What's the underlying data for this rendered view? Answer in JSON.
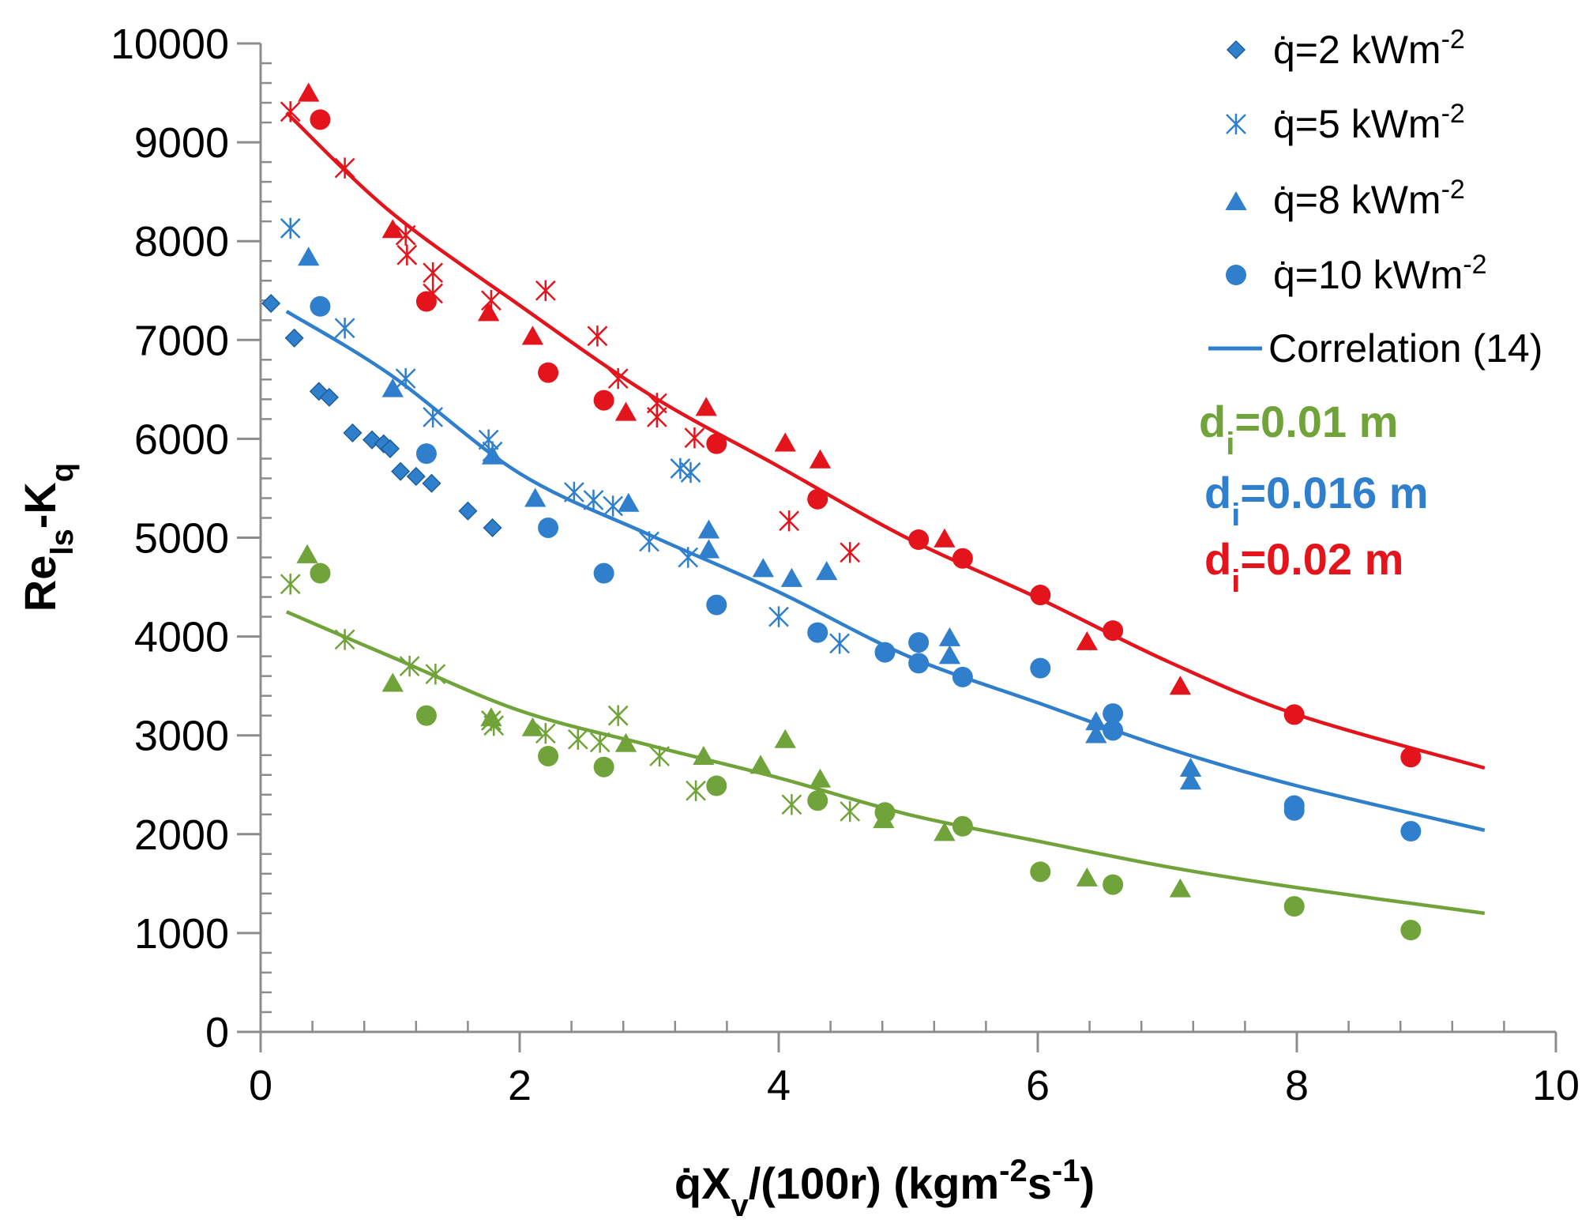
{
  "colors": {
    "green": "#70a33a",
    "blue": "#2f7fcc",
    "red": "#e3141b",
    "axis": "#8c8c8c"
  },
  "chart_data": {
    "type": "scatter",
    "title": "",
    "xlabel": {
      "main": "q̇X",
      "sub": "v",
      "rest": "/(100r) (kgm",
      "sup1": "-2",
      "mid": "s",
      "sup2": "-1",
      "end": ")"
    },
    "ylabel": {
      "main": "Re",
      "sub": "ls",
      "rest": "-K",
      "sub2": "q"
    },
    "xlim": [
      0,
      10
    ],
    "ylim": [
      0,
      10000
    ],
    "xticks": [
      "0",
      "2",
      "4",
      "6",
      "8",
      "10"
    ],
    "yticks": [
      "0",
      "1000",
      "2000",
      "3000",
      "4000",
      "5000",
      "6000",
      "7000",
      "8000",
      "9000",
      "10000"
    ],
    "grid": false,
    "legend_position": "top-right",
    "legend": [
      {
        "marker": "diamond",
        "prefix": "q̇=2 kWm",
        "sup": "-2"
      },
      {
        "marker": "star",
        "prefix": "q̇=5 kWm",
        "sup": "-2"
      },
      {
        "marker": "triangle",
        "prefix": "q̇=8 kWm",
        "sup": "-2"
      },
      {
        "marker": "circle",
        "prefix": "q̇=10 kWm",
        "sup": "-2"
      },
      {
        "marker": "line",
        "prefix": "Correlation (14)",
        "sup": ""
      }
    ],
    "diameters": [
      {
        "label": "d",
        "sub": "i",
        "value": "=0.01 m",
        "color": "green"
      },
      {
        "label": "d",
        "sub": "i",
        "value": "=0.016 m",
        "color": "blue"
      },
      {
        "label": "d",
        "sub": "i",
        "value": "=0.02 m",
        "color": "red"
      }
    ],
    "series": [
      {
        "color": "blue",
        "marker": "diamond",
        "points": [
          [
            0.08,
            7370
          ],
          [
            0.26,
            7020
          ],
          [
            0.45,
            6480
          ],
          [
            0.53,
            6420
          ],
          [
            0.71,
            6060
          ],
          [
            0.86,
            5990
          ],
          [
            0.95,
            5950
          ],
          [
            1.0,
            5900
          ],
          [
            1.08,
            5670
          ],
          [
            1.2,
            5620
          ],
          [
            1.32,
            5550
          ],
          [
            1.6,
            5270
          ],
          [
            1.79,
            5100
          ]
        ]
      },
      {
        "color": "green",
        "marker": "star",
        "points": [
          [
            0.23,
            4530
          ],
          [
            0.65,
            3970
          ],
          [
            1.15,
            3700
          ],
          [
            1.35,
            3620
          ],
          [
            1.78,
            3150
          ],
          [
            1.8,
            3100
          ],
          [
            2.2,
            3020
          ],
          [
            2.45,
            2960
          ],
          [
            2.62,
            2930
          ],
          [
            2.76,
            3200
          ],
          [
            3.08,
            2790
          ],
          [
            3.36,
            2440
          ],
          [
            4.1,
            2300
          ],
          [
            4.55,
            2230
          ]
        ]
      },
      {
        "color": "green",
        "marker": "triangle",
        "points": [
          [
            0.36,
            4830
          ],
          [
            1.02,
            3530
          ],
          [
            1.78,
            3180
          ],
          [
            2.1,
            3080
          ],
          [
            2.82,
            2920
          ],
          [
            3.42,
            2790
          ],
          [
            3.86,
            2700
          ],
          [
            4.05,
            2960
          ],
          [
            4.32,
            2560
          ],
          [
            4.81,
            2150
          ],
          [
            5.28,
            2020
          ],
          [
            6.38,
            1560
          ],
          [
            7.1,
            1450
          ]
        ]
      },
      {
        "color": "green",
        "marker": "circle",
        "points": [
          [
            0.46,
            4640
          ],
          [
            1.28,
            3200
          ],
          [
            2.22,
            2790
          ],
          [
            2.65,
            2680
          ],
          [
            3.52,
            2490
          ],
          [
            4.3,
            2340
          ],
          [
            4.82,
            2220
          ],
          [
            5.42,
            2080
          ],
          [
            6.02,
            1620
          ],
          [
            6.58,
            1490
          ],
          [
            7.98,
            1270
          ],
          [
            8.88,
            1030
          ]
        ]
      },
      {
        "color": "blue",
        "marker": "star",
        "points": [
          [
            0.23,
            8130
          ],
          [
            0.65,
            7120
          ],
          [
            1.12,
            6610
          ],
          [
            1.33,
            6220
          ],
          [
            1.76,
            5990
          ],
          [
            1.79,
            5870
          ],
          [
            2.42,
            5460
          ],
          [
            2.57,
            5380
          ],
          [
            2.72,
            5320
          ],
          [
            3.0,
            4960
          ],
          [
            3.24,
            5700
          ],
          [
            3.32,
            5660
          ],
          [
            3.3,
            4800
          ],
          [
            4.0,
            4200
          ],
          [
            4.47,
            3930
          ]
        ]
      },
      {
        "color": "blue",
        "marker": "triangle",
        "points": [
          [
            0.37,
            7840
          ],
          [
            1.02,
            6510
          ],
          [
            1.79,
            5830
          ],
          [
            2.12,
            5400
          ],
          [
            2.84,
            5350
          ],
          [
            3.46,
            5080
          ],
          [
            3.46,
            4880
          ],
          [
            3.88,
            4690
          ],
          [
            4.1,
            4590
          ],
          [
            4.37,
            4660
          ],
          [
            5.32,
            3990
          ],
          [
            5.32,
            3810
          ],
          [
            6.45,
            3140
          ],
          [
            6.45,
            3010
          ],
          [
            7.18,
            2670
          ],
          [
            7.18,
            2540
          ]
        ]
      },
      {
        "color": "blue",
        "marker": "circle",
        "points": [
          [
            0.46,
            7340
          ],
          [
            1.28,
            5850
          ],
          [
            2.22,
            5100
          ],
          [
            2.65,
            4640
          ],
          [
            3.52,
            4320
          ],
          [
            4.3,
            4040
          ],
          [
            4.82,
            3840
          ],
          [
            5.08,
            3940
          ],
          [
            5.08,
            3730
          ],
          [
            5.42,
            3590
          ],
          [
            6.02,
            3680
          ],
          [
            6.58,
            3220
          ],
          [
            6.58,
            3050
          ],
          [
            7.98,
            2290
          ],
          [
            7.98,
            2240
          ],
          [
            8.88,
            2030
          ]
        ]
      },
      {
        "color": "red",
        "marker": "star",
        "points": [
          [
            0.23,
            9310
          ],
          [
            0.65,
            8740
          ],
          [
            1.12,
            8060
          ],
          [
            1.13,
            7860
          ],
          [
            1.33,
            7680
          ],
          [
            1.33,
            7470
          ],
          [
            1.78,
            7400
          ],
          [
            2.2,
            7500
          ],
          [
            2.6,
            7040
          ],
          [
            2.76,
            6610
          ],
          [
            3.06,
            6360
          ],
          [
            3.06,
            6220
          ],
          [
            3.35,
            6010
          ],
          [
            4.08,
            5170
          ],
          [
            4.55,
            4850
          ]
        ]
      },
      {
        "color": "red",
        "marker": "triangle",
        "points": [
          [
            0.37,
            9500
          ],
          [
            1.02,
            8120
          ],
          [
            1.76,
            7280
          ],
          [
            2.1,
            7040
          ],
          [
            2.82,
            6270
          ],
          [
            3.44,
            6320
          ],
          [
            4.05,
            5960
          ],
          [
            4.32,
            5790
          ],
          [
            5.28,
            4990
          ],
          [
            6.38,
            3950
          ],
          [
            7.1,
            3500
          ]
        ]
      },
      {
        "color": "red",
        "marker": "circle",
        "points": [
          [
            0.46,
            9230
          ],
          [
            1.28,
            7390
          ],
          [
            2.22,
            6670
          ],
          [
            2.65,
            6390
          ],
          [
            3.52,
            5950
          ],
          [
            4.3,
            5390
          ],
          [
            5.08,
            4980
          ],
          [
            5.42,
            4790
          ],
          [
            6.02,
            4420
          ],
          [
            6.58,
            4060
          ],
          [
            7.98,
            3210
          ],
          [
            8.88,
            2780
          ]
        ]
      }
    ],
    "fit_lines": [
      {
        "color": "green",
        "points": [
          [
            0.2,
            4250
          ],
          [
            1,
            3800
          ],
          [
            2,
            3250
          ],
          [
            3,
            2900
          ],
          [
            4,
            2570
          ],
          [
            5,
            2200
          ],
          [
            6,
            1930
          ],
          [
            7,
            1670
          ],
          [
            8,
            1460
          ],
          [
            9.45,
            1200
          ]
        ]
      },
      {
        "color": "blue",
        "points": [
          [
            0.2,
            7290
          ],
          [
            1,
            6650
          ],
          [
            2,
            5650
          ],
          [
            3,
            5030
          ],
          [
            4,
            4450
          ],
          [
            5,
            3800
          ],
          [
            6,
            3330
          ],
          [
            7,
            2870
          ],
          [
            8,
            2490
          ],
          [
            9.45,
            2040
          ]
        ]
      },
      {
        "color": "red",
        "points": [
          [
            0.2,
            9300
          ],
          [
            1,
            8300
          ],
          [
            2,
            7350
          ],
          [
            3,
            6450
          ],
          [
            4,
            5720
          ],
          [
            5,
            4990
          ],
          [
            6,
            4390
          ],
          [
            7,
            3750
          ],
          [
            8,
            3210
          ],
          [
            9.45,
            2670
          ]
        ]
      }
    ]
  }
}
